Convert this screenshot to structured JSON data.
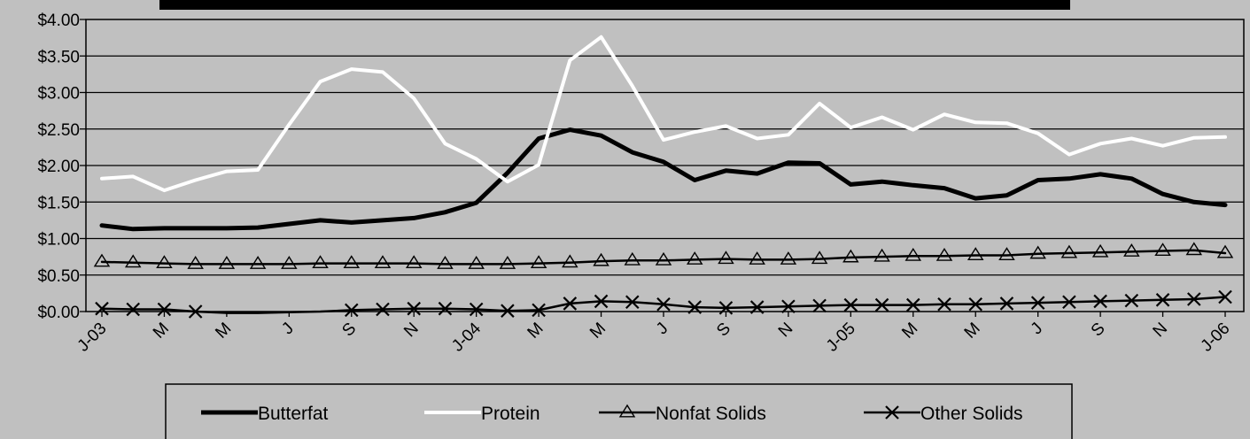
{
  "chart_data": {
    "type": "line",
    "title": "",
    "xlabel": "",
    "ylabel": "",
    "ylim": [
      0,
      4
    ],
    "yticks": [
      "$0.00",
      "$0.50",
      "$1.00",
      "$1.50",
      "$2.00",
      "$2.50",
      "$3.00",
      "$3.50",
      "$4.00"
    ],
    "x": [
      "2003-01",
      "2003-02",
      "2003-03",
      "2003-04",
      "2003-05",
      "2003-06",
      "2003-07",
      "2003-08",
      "2003-09",
      "2003-10",
      "2003-11",
      "2003-12",
      "2004-01",
      "2004-02",
      "2004-03",
      "2004-04",
      "2004-05",
      "2004-06",
      "2004-07",
      "2004-08",
      "2004-09",
      "2004-10",
      "2004-11",
      "2004-12",
      "2005-01",
      "2005-02",
      "2005-03",
      "2005-04",
      "2005-05",
      "2005-06",
      "2005-07",
      "2005-08",
      "2005-09",
      "2005-10",
      "2005-11",
      "2005-12",
      "2006-01"
    ],
    "xtick_labels": [
      "J-03",
      "M",
      "M",
      "J",
      "S",
      "N",
      "J-04",
      "M",
      "M",
      "J",
      "S",
      "N",
      "J-05",
      "M",
      "M",
      "J",
      "S",
      "N",
      "J-06"
    ],
    "grid": true,
    "legend_position": "bottom",
    "colors": {
      "background": "#c0c0c0",
      "title_bar": "#000000",
      "butterfat": "#000000",
      "protein": "#ffffff",
      "nonfat": "#000000",
      "other": "#000000"
    },
    "series": [
      {
        "name": "Butterfat",
        "marker": "none",
        "values": [
          1.18,
          1.13,
          1.14,
          1.14,
          1.14,
          1.15,
          1.2,
          1.25,
          1.22,
          1.25,
          1.28,
          1.36,
          1.49,
          1.9,
          2.37,
          2.49,
          2.41,
          2.18,
          2.05,
          1.8,
          1.93,
          1.89,
          2.04,
          2.03,
          1.74,
          1.78,
          1.73,
          1.69,
          1.55,
          1.59,
          1.8,
          1.82,
          1.88,
          1.82,
          1.61,
          1.5,
          1.46
        ]
      },
      {
        "name": "Protein",
        "marker": "none",
        "values": [
          1.82,
          1.85,
          1.66,
          1.8,
          1.92,
          1.94,
          2.56,
          3.15,
          3.32,
          3.28,
          2.92,
          2.3,
          2.09,
          1.78,
          2.01,
          3.44,
          3.76,
          3.09,
          2.35,
          2.46,
          2.54,
          2.37,
          2.42,
          2.85,
          2.52,
          2.66,
          2.49,
          2.7,
          2.59,
          2.58,
          2.44,
          2.15,
          2.3,
          2.37,
          2.27,
          2.38,
          2.39
        ]
      },
      {
        "name": "Nonfat Solids",
        "marker": "triangle",
        "values": [
          0.68,
          0.67,
          0.66,
          0.65,
          0.65,
          0.65,
          0.65,
          0.66,
          0.66,
          0.66,
          0.66,
          0.65,
          0.65,
          0.65,
          0.66,
          0.67,
          0.69,
          0.7,
          0.7,
          0.71,
          0.72,
          0.71,
          0.71,
          0.72,
          0.74,
          0.75,
          0.76,
          0.76,
          0.77,
          0.77,
          0.79,
          0.8,
          0.81,
          0.82,
          0.83,
          0.84,
          0.8
        ]
      },
      {
        "name": "Other Solids",
        "marker": "x",
        "values": [
          0.04,
          0.03,
          0.03,
          0.0,
          -0.02,
          -0.02,
          -0.01,
          0.0,
          0.02,
          0.03,
          0.04,
          0.04,
          0.03,
          0.01,
          0.02,
          0.11,
          0.14,
          0.13,
          0.1,
          0.06,
          0.05,
          0.06,
          0.07,
          0.08,
          0.09,
          0.09,
          0.09,
          0.1,
          0.1,
          0.11,
          0.12,
          0.13,
          0.14,
          0.15,
          0.16,
          0.17,
          0.2
        ]
      }
    ]
  }
}
